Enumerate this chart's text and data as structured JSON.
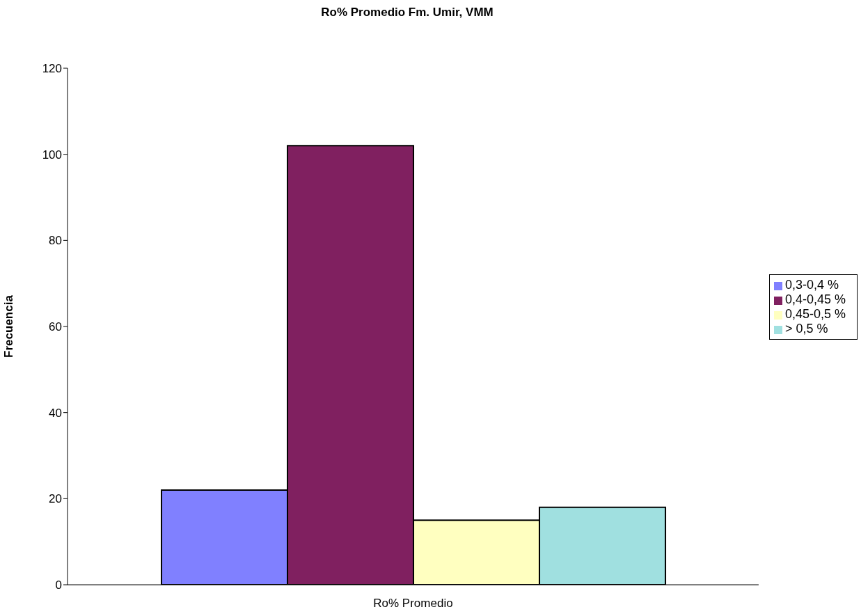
{
  "chart_data": {
    "type": "bar",
    "title": "Ro% Promedio Fm. Umir, VMM",
    "xlabel": "Ro% Promedio",
    "ylabel": "Frecuencia",
    "categories": [
      null
    ],
    "series": [
      {
        "name": "0,3-0,4 %",
        "color": "#8080ff",
        "values": [
          22
        ]
      },
      {
        "name": "0,4-0,45 %",
        "color": "#802060",
        "values": [
          102
        ]
      },
      {
        "name": "0,45-0,5 %",
        "color": "#ffffc0",
        "values": [
          15
        ]
      },
      {
        "name": "> 0,5 %",
        "color": "#a0e0e0",
        "values": [
          18
        ]
      }
    ],
    "ylim": [
      0,
      120
    ],
    "yticks": [
      0,
      20,
      40,
      60,
      80,
      100,
      120
    ],
    "legend": "right"
  }
}
